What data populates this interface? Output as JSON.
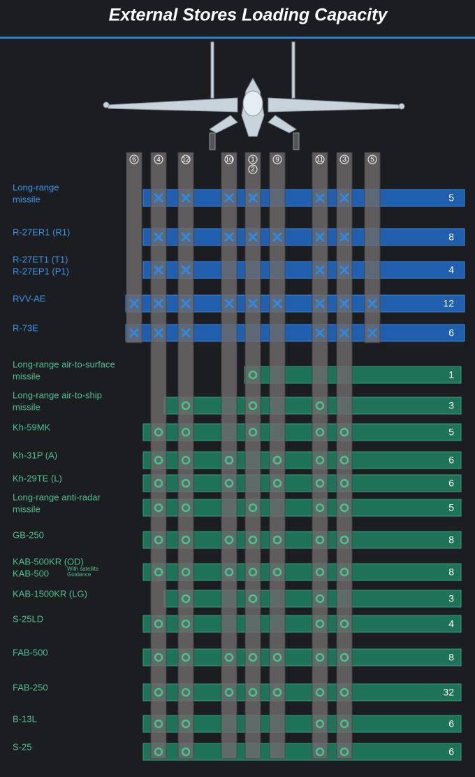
{
  "header": {
    "title": "External Stores Loading Capacity"
  },
  "stations": [
    "6",
    "4",
    "12",
    "10",
    [
      "1",
      "2"
    ],
    "9",
    "11",
    "3",
    "5"
  ],
  "rows": [
    {
      "label": [
        "Long-range",
        "missile"
      ],
      "count": 5
    },
    {
      "label": [
        "R-27ER1 (R1)"
      ],
      "count": 8
    },
    {
      "label": [
        "R-27ET1 (T1)",
        "R-27EP1 (P1)"
      ],
      "count": 4
    },
    {
      "label": [
        "RVV-AE"
      ],
      "count": 12
    },
    {
      "label": [
        "R-73E"
      ],
      "count": 6
    },
    {
      "label": [
        "Long-range air-to-surface",
        "missile"
      ],
      "count": 1
    },
    {
      "label": [
        "Long-range air-to-ship",
        "missile"
      ],
      "count": 3
    },
    {
      "label": [
        "Kh-59MK"
      ],
      "count": 5
    },
    {
      "label": [
        "Kh-31P (A)"
      ],
      "count": 6
    },
    {
      "label": [
        "Kh-29TE (L)"
      ],
      "count": 6
    },
    {
      "label": [
        "Long-range anti-radar",
        "missile"
      ],
      "count": 5
    },
    {
      "label": [
        "GB-250"
      ],
      "count": 8
    },
    {
      "label": [
        "KAB-500KR (OD)",
        "KAB-500"
      ],
      "note": [
        "With satellite",
        "Guidance"
      ],
      "count": 8
    },
    {
      "label": [
        "KAB-1500KR (LG)"
      ],
      "count": 3
    },
    {
      "label": [
        "S-25LD"
      ],
      "count": 4
    },
    {
      "label": [
        "FAB-500"
      ],
      "count": 8
    },
    {
      "label": [
        "FAB-250"
      ],
      "count": 32
    },
    {
      "label": [
        "B-13L"
      ],
      "count": 6
    },
    {
      "label": [
        "S-25"
      ],
      "count": 6
    }
  ]
}
